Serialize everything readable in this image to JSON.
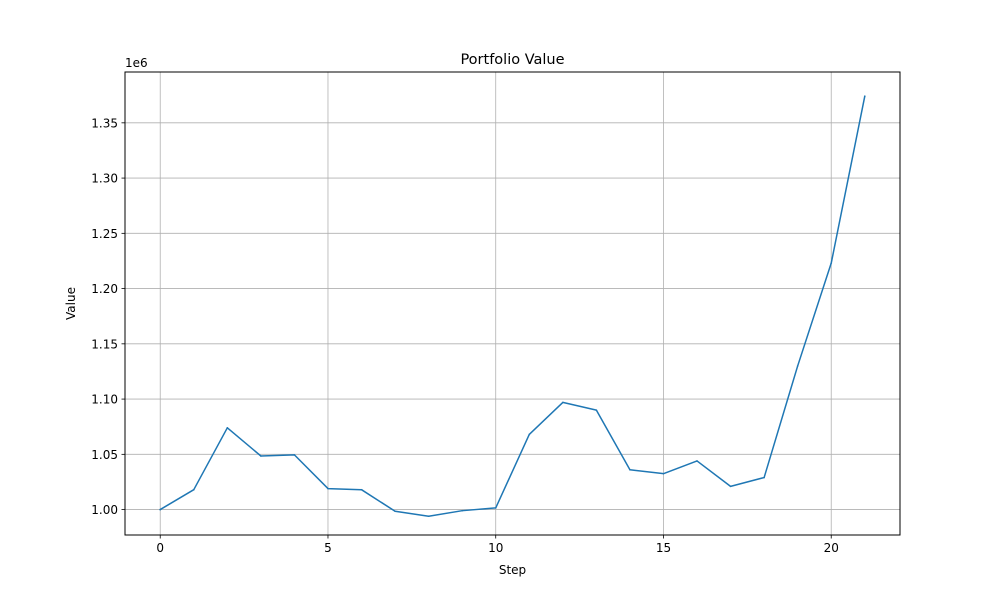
{
  "chart_data": {
    "type": "line",
    "title": "Portfolio Value",
    "xlabel": "Step",
    "ylabel": "Value",
    "y_offset_label": "1e6",
    "xlim": [
      -1.05,
      22.05
    ],
    "ylim": [
      977000,
      1396000
    ],
    "xticks": [
      0,
      5,
      10,
      15,
      20
    ],
    "yticks": [
      1000000,
      1050000,
      1100000,
      1150000,
      1200000,
      1250000,
      1300000,
      1350000
    ],
    "ytick_labels": [
      "1.00",
      "1.05",
      "1.10",
      "1.15",
      "1.20",
      "1.25",
      "1.30",
      "1.35"
    ],
    "grid": true,
    "series": [
      {
        "color": "#1f77b4",
        "x": [
          0,
          1,
          2,
          3,
          4,
          5,
          6,
          7,
          8,
          9,
          10,
          11,
          12,
          13,
          14,
          15,
          16,
          17,
          18,
          19,
          20,
          21
        ],
        "values": [
          1000000,
          1018000,
          1074000,
          1048500,
          1049500,
          1019000,
          1018000,
          998500,
          994000,
          999000,
          1001500,
          1068000,
          1097000,
          1090000,
          1036000,
          1032500,
          1044000,
          1021000,
          1029000,
          1130000,
          1223000,
          1374000
        ]
      }
    ]
  }
}
